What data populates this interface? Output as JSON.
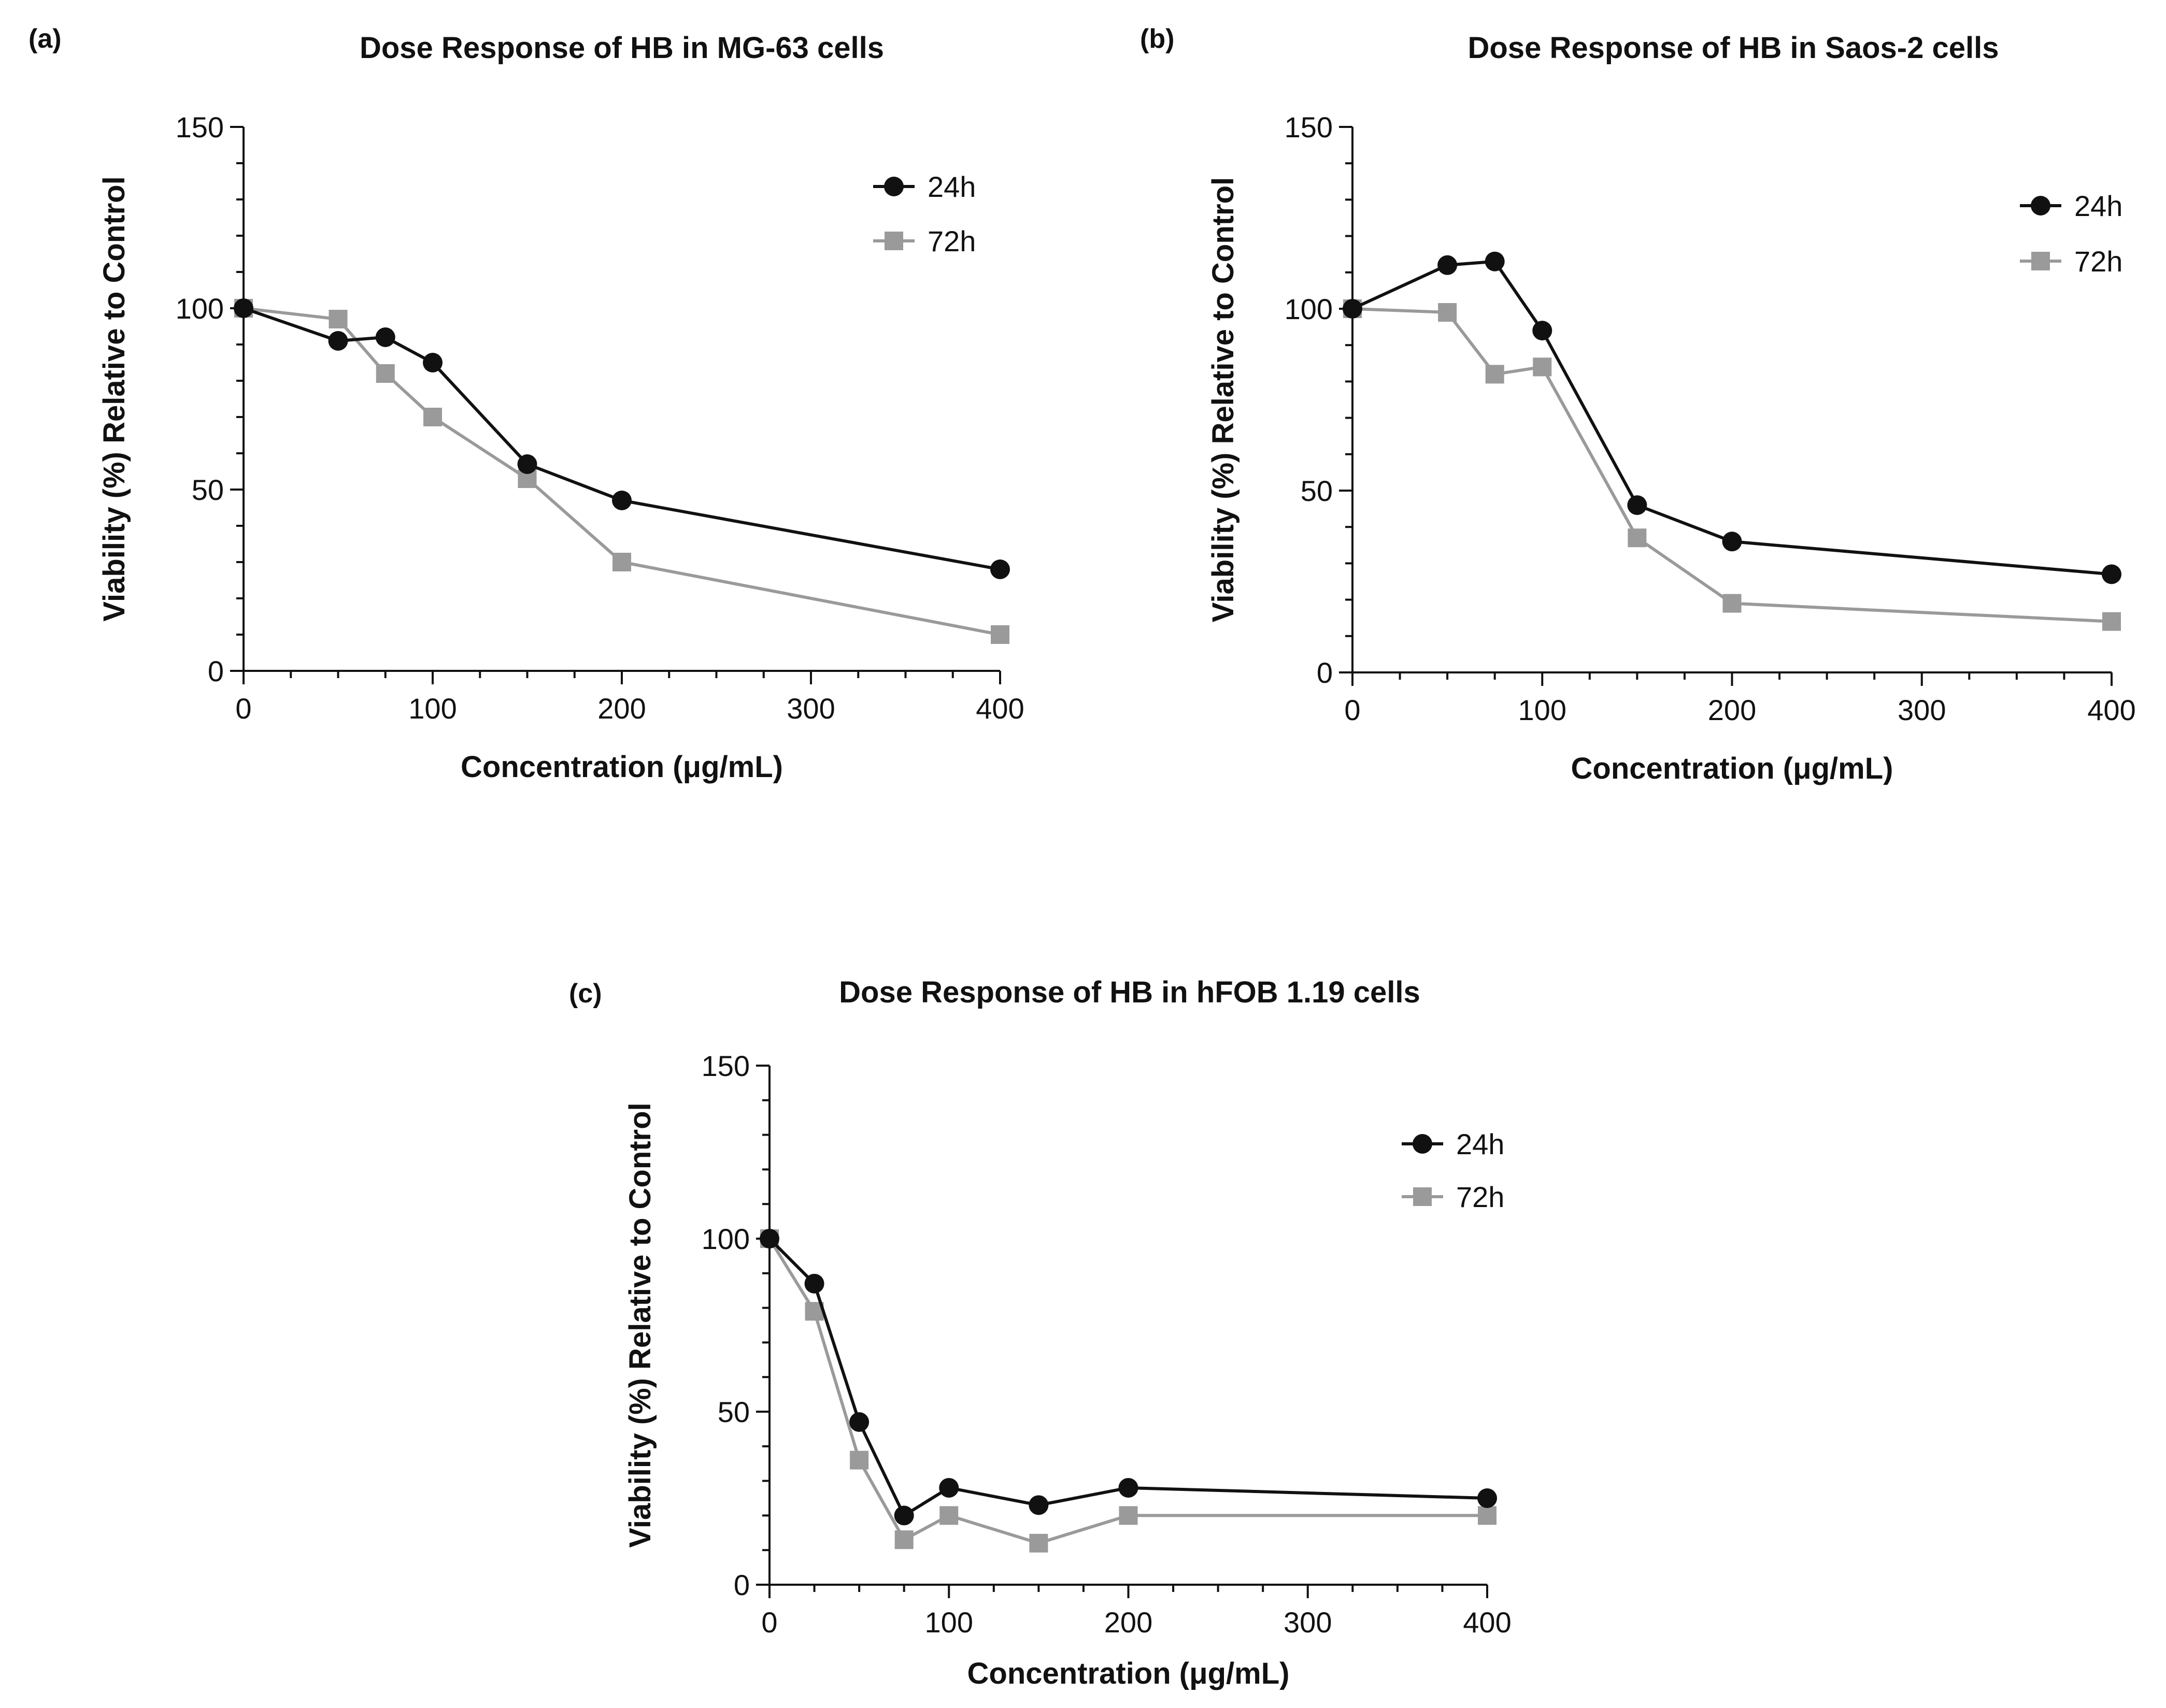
{
  "chart_data": [
    {
      "type": "line",
      "panel": "(a)",
      "title": "Dose Response of HB in MG-63 cells",
      "xlabel": "Concentration (μg/mL)",
      "ylabel": "Viability (%) Relative to Control",
      "xlim": [
        0,
        400
      ],
      "ylim": [
        0,
        150
      ],
      "xticks": [
        0,
        100,
        200,
        300,
        400
      ],
      "yticks": [
        0,
        50,
        100,
        150
      ],
      "legend_position": "top-right",
      "series": [
        {
          "name": "24h",
          "color": "#111111",
          "marker": "circle",
          "x": [
            0,
            50,
            75,
            100,
            150,
            200,
            400
          ],
          "values": [
            100,
            91,
            92,
            85,
            57,
            47,
            28
          ]
        },
        {
          "name": "72h",
          "color": "#9a9a9a",
          "marker": "square",
          "x": [
            0,
            50,
            75,
            100,
            150,
            200,
            400
          ],
          "values": [
            100,
            97,
            82,
            70,
            53,
            30,
            10
          ]
        }
      ]
    },
    {
      "type": "line",
      "panel": "(b)",
      "title": "Dose Response of HB in Saos-2 cells",
      "xlabel": "Concentration (μg/mL)",
      "ylabel": "Viability (%) Relative to Control",
      "xlim": [
        0,
        400
      ],
      "ylim": [
        0,
        150
      ],
      "xticks": [
        0,
        100,
        200,
        300,
        400
      ],
      "yticks": [
        0,
        50,
        100,
        150
      ],
      "legend_position": "top-right",
      "series": [
        {
          "name": "24h",
          "color": "#111111",
          "marker": "circle",
          "x": [
            0,
            50,
            75,
            100,
            150,
            200,
            400
          ],
          "values": [
            100,
            112,
            113,
            94,
            46,
            36,
            27
          ]
        },
        {
          "name": "72h",
          "color": "#9a9a9a",
          "marker": "square",
          "x": [
            0,
            50,
            75,
            100,
            150,
            200,
            400
          ],
          "values": [
            100,
            99,
            82,
            84,
            37,
            19,
            14
          ]
        }
      ]
    },
    {
      "type": "line",
      "panel": "(c)",
      "title": "Dose Response of HB in hFOB 1.19 cells",
      "xlabel": "Concentration (μg/mL)",
      "ylabel": "Viability (%) Relative to Control",
      "xlim": [
        0,
        400
      ],
      "ylim": [
        0,
        150
      ],
      "xticks": [
        0,
        100,
        200,
        300,
        400
      ],
      "yticks": [
        0,
        50,
        100,
        150
      ],
      "legend_position": "top-right",
      "series": [
        {
          "name": "24h",
          "color": "#111111",
          "marker": "circle",
          "x": [
            0,
            25,
            50,
            75,
            100,
            150,
            200,
            400
          ],
          "values": [
            100,
            87,
            47,
            20,
            28,
            23,
            28,
            25
          ]
        },
        {
          "name": "72h",
          "color": "#9a9a9a",
          "marker": "square",
          "x": [
            0,
            25,
            50,
            75,
            100,
            150,
            200,
            400
          ],
          "values": [
            100,
            79,
            36,
            13,
            20,
            12,
            20,
            20
          ]
        }
      ]
    }
  ]
}
